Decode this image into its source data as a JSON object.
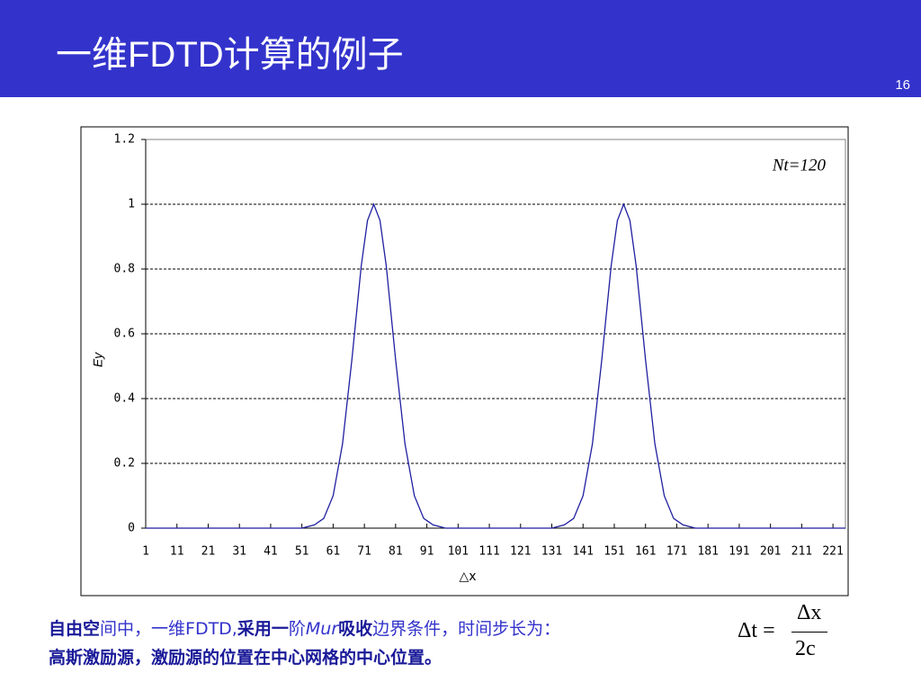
{
  "slide": {
    "title": "一维FDTD计算的例子",
    "page_number": "16",
    "caption_line1": [
      {
        "text": "自由空",
        "style": "bold"
      },
      {
        "text": "间中，一维FDTD,",
        "style": "normal"
      },
      {
        "text": "采用一",
        "style": "bold"
      },
      {
        "text": "阶",
        "style": "normal"
      },
      {
        "text": "Mur",
        "style": "italic"
      },
      {
        "text": "吸收",
        "style": "bold"
      },
      {
        "text": "边界条件，时间步长为：",
        "style": "normal"
      }
    ],
    "caption_line2": [
      {
        "text": "高斯激励源，激励源的位置在中心网格的中心位置。",
        "style": "bold"
      }
    ],
    "formula": {
      "lhs": "Δt =",
      "numerator": "Δx",
      "denominator": "2c"
    }
  },
  "chart_data": {
    "type": "line",
    "annotation": "Nt=120",
    "ylabel": "Ey",
    "xlabel": "△x",
    "x": [
      1,
      21,
      41,
      51,
      55,
      58,
      61,
      64,
      67,
      70,
      72,
      74,
      76,
      78,
      81,
      84,
      87,
      90,
      93,
      97,
      111,
      131,
      135,
      138,
      141,
      144,
      147,
      150,
      152,
      154,
      156,
      158,
      161,
      164,
      167,
      170,
      173,
      177,
      201,
      225
    ],
    "series": [
      {
        "color": "#1f1fa0",
        "values": [
          0,
          0,
          0,
          0,
          0.01,
          0.03,
          0.1,
          0.26,
          0.52,
          0.81,
          0.95,
          1,
          0.95,
          0.81,
          0.52,
          0.26,
          0.1,
          0.03,
          0.01,
          0,
          0,
          0,
          0.01,
          0.03,
          0.1,
          0.26,
          0.52,
          0.81,
          0.95,
          1,
          0.95,
          0.81,
          0.52,
          0.26,
          0.1,
          0.03,
          0.01,
          0,
          0,
          0
        ]
      }
    ],
    "xlim": [
      1,
      225
    ],
    "xticks": [
      1,
      11,
      21,
      31,
      41,
      51,
      61,
      71,
      81,
      91,
      101,
      111,
      121,
      131,
      141,
      151,
      161,
      171,
      181,
      191,
      201,
      211,
      221
    ],
    "ylim": [
      0,
      1.2
    ],
    "yticks": [
      0,
      0.2,
      0.4,
      0.6,
      0.8,
      1,
      1.2
    ],
    "grid": true
  }
}
